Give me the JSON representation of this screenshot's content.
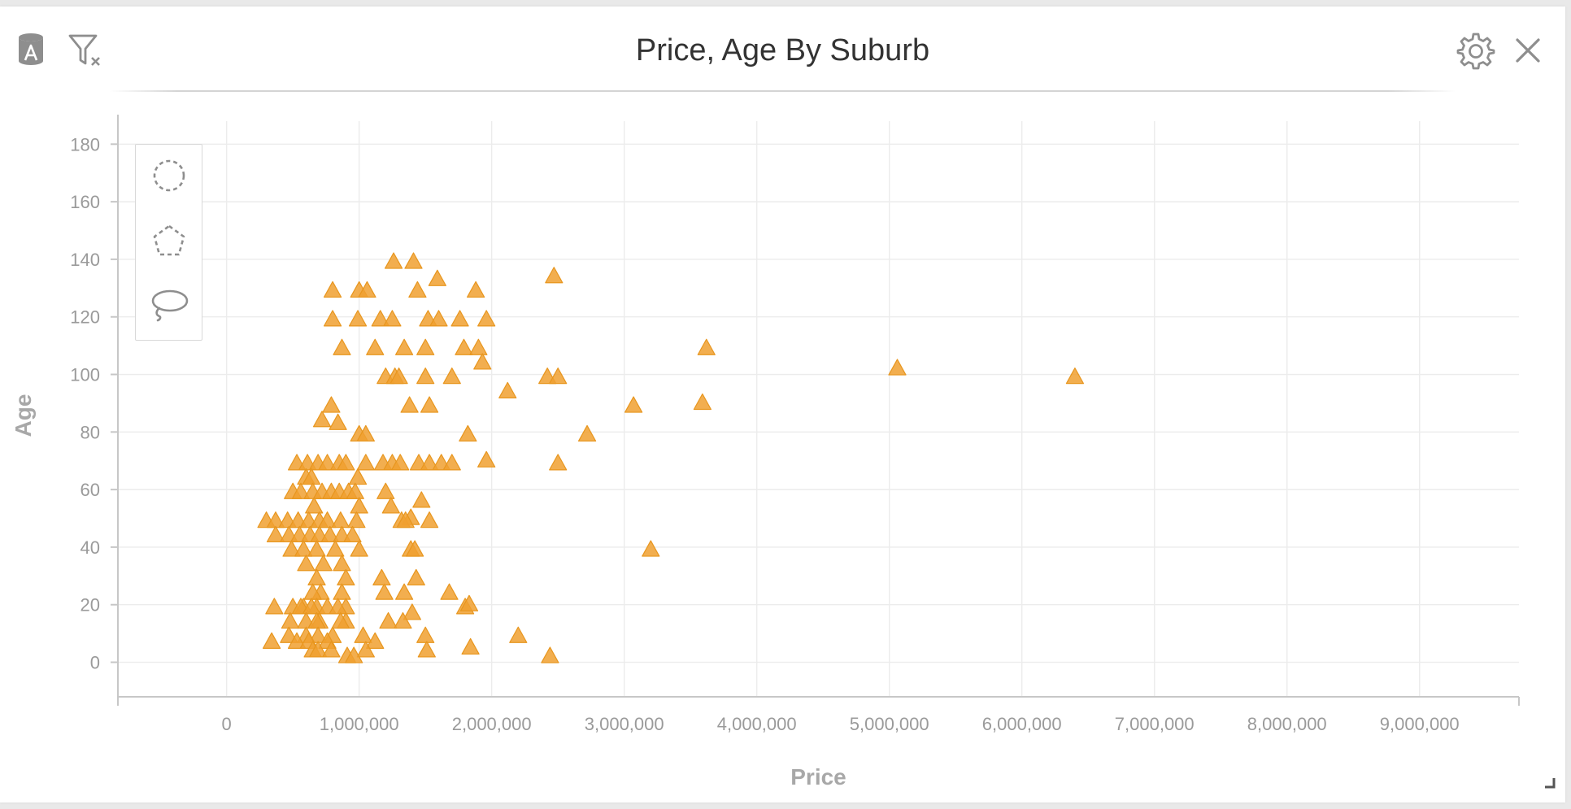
{
  "header": {
    "title": "Price, Age By Suburb"
  },
  "icons": {
    "datasource": "datasource-a-icon",
    "clear_filter": "clear-filter-icon",
    "settings": "gear-icon",
    "close": "close-icon",
    "circle_select": "circle-select-icon",
    "polygon_select": "polygon-select-icon",
    "lasso_select": "lasso-select-icon",
    "resize": "resize-grip-icon"
  },
  "colors": {
    "marker": "#f0a030",
    "marker_stroke": "#e8961e",
    "grid": "#ececec",
    "axis": "#c7c7c7",
    "tick_text": "#9a9a9a",
    "axis_title": "#a8a8a8",
    "title_text": "#333333"
  },
  "chart_data": {
    "type": "scatter",
    "marker": "triangle",
    "title": "Price, Age By Suburb",
    "xlabel": "Price",
    "ylabel": "Age",
    "xlim": [
      -820000,
      9750000
    ],
    "ylim": [
      -12,
      188
    ],
    "x_ticks": [
      0,
      1000000,
      2000000,
      3000000,
      4000000,
      5000000,
      6000000,
      7000000,
      8000000,
      9000000
    ],
    "x_tick_labels": [
      "0",
      "1,000,000",
      "2,000,000",
      "3,000,000",
      "4,000,000",
      "5,000,000",
      "6,000,000",
      "7,000,000",
      "8,000,000",
      "9,000,000"
    ],
    "y_ticks": [
      0,
      20,
      40,
      60,
      80,
      100,
      120,
      140,
      160,
      180
    ],
    "y_tick_labels": [
      "0",
      "20",
      "40",
      "60",
      "80",
      "100",
      "120",
      "140",
      "160",
      "180"
    ],
    "grid": true,
    "legend": false,
    "x": [
      1260000,
      1410000,
      1590000,
      2470000,
      800000,
      1000000,
      1060000,
      1440000,
      1880000,
      800000,
      990000,
      1160000,
      1250000,
      1520000,
      1600000,
      1760000,
      1960000,
      870000,
      1120000,
      1340000,
      1500000,
      1790000,
      1900000,
      3620000,
      1930000,
      1200000,
      1270000,
      1300000,
      1500000,
      1700000,
      2420000,
      2500000,
      5060000,
      6400000,
      2120000,
      1380000,
      1530000,
      3070000,
      3590000,
      790000,
      720000,
      840000,
      1000000,
      1050000,
      1820000,
      2720000,
      530000,
      610000,
      690000,
      760000,
      850000,
      900000,
      1050000,
      1180000,
      1250000,
      1310000,
      1450000,
      1530000,
      1620000,
      1700000,
      1960000,
      2500000,
      600000,
      640000,
      990000,
      500000,
      560000,
      650000,
      720000,
      790000,
      850000,
      920000,
      970000,
      1200000,
      1470000,
      660000,
      1000000,
      1240000,
      1390000,
      300000,
      370000,
      460000,
      540000,
      620000,
      700000,
      760000,
      860000,
      980000,
      1320000,
      1350000,
      1530000,
      370000,
      470000,
      550000,
      630000,
      700000,
      780000,
      870000,
      950000,
      490000,
      580000,
      680000,
      820000,
      1000000,
      1390000,
      1420000,
      600000,
      730000,
      870000,
      3200000,
      680000,
      900000,
      710000,
      870000,
      1190000,
      1430000,
      650000,
      1170000,
      1340000,
      1680000,
      500000,
      580000,
      680000,
      900000,
      1800000,
      360000,
      560000,
      640000,
      760000,
      840000,
      1830000,
      600000,
      700000,
      900000,
      1400000,
      480000,
      680000,
      860000,
      1220000,
      1330000,
      470000,
      600000,
      690000,
      800000,
      1030000,
      1500000,
      2200000,
      340000,
      530000,
      620000,
      760000,
      1120000,
      650000,
      690000,
      790000,
      1050000,
      1510000,
      1840000,
      910000,
      960000,
      2440000
    ],
    "y": [
      139,
      139,
      133,
      134,
      129,
      129,
      129,
      129,
      129,
      119,
      119,
      119,
      119,
      119,
      119,
      119,
      119,
      109,
      109,
      109,
      109,
      109,
      109,
      109,
      104,
      99,
      99,
      99,
      99,
      99,
      99,
      99,
      102,
      99,
      94,
      89,
      89,
      89,
      90,
      89,
      84,
      83,
      79,
      79,
      79,
      79,
      69,
      69,
      69,
      69,
      69,
      69,
      69,
      69,
      69,
      69,
      69,
      69,
      69,
      69,
      70,
      69,
      64,
      64,
      64,
      59,
      59,
      59,
      59,
      59,
      59,
      59,
      59,
      59,
      56,
      54,
      54,
      54,
      50,
      49,
      49,
      49,
      49,
      49,
      49,
      49,
      49,
      49,
      49,
      49,
      49,
      44,
      44,
      44,
      44,
      44,
      44,
      44,
      44,
      39,
      39,
      39,
      39,
      39,
      39,
      39,
      34,
      34,
      34,
      39,
      29,
      29,
      24,
      24,
      24,
      29,
      24,
      29,
      24,
      24,
      19,
      19,
      19,
      19,
      19,
      19,
      19,
      19,
      19,
      19,
      20,
      14,
      14,
      14,
      17,
      14,
      14,
      14,
      14,
      14,
      9,
      9,
      9,
      9,
      9,
      9,
      9,
      7,
      7,
      7,
      7,
      7,
      4,
      4,
      4,
      4,
      4,
      5,
      2,
      2,
      2
    ]
  }
}
